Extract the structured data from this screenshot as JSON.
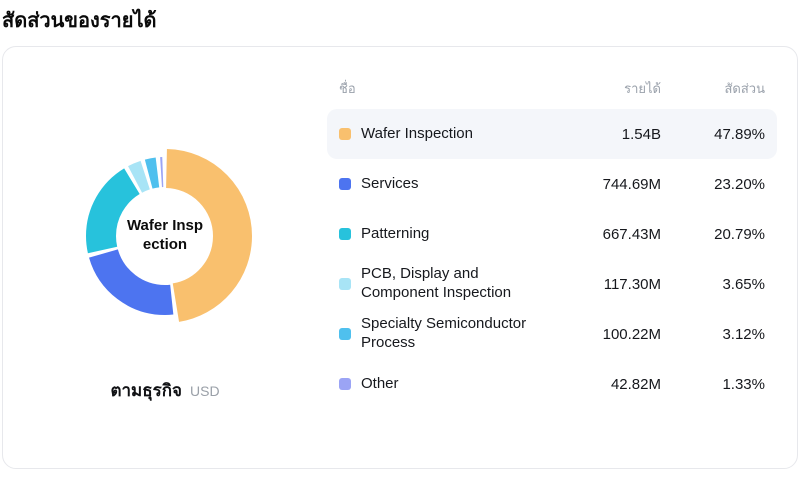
{
  "page_title": "สัดส่วนของรายได้",
  "chart": {
    "center_label_lines": [
      "Wafer Insp",
      "ection"
    ],
    "caption": "ตามธุรกิจ",
    "unit": "USD"
  },
  "table": {
    "headers": {
      "name": "ชื่อ",
      "revenue": "รายได้",
      "share": "สัดส่วน"
    },
    "rows": [
      {
        "name": "Wafer Inspection",
        "revenue": "1.54B",
        "share": "47.89%",
        "color": "#F9C06E"
      },
      {
        "name": "Services",
        "revenue": "744.69M",
        "share": "23.20%",
        "color": "#4D74F0"
      },
      {
        "name": "Patterning",
        "revenue": "667.43M",
        "share": "20.79%",
        "color": "#27C2DC"
      },
      {
        "name": "PCB, Display and Component Inspection",
        "revenue": "117.30M",
        "share": "3.65%",
        "color": "#A8E4F6"
      },
      {
        "name": "Specialty Semiconductor Process",
        "revenue": "100.22M",
        "share": "3.12%",
        "color": "#4FC0EE"
      },
      {
        "name": "Other",
        "revenue": "42.82M",
        "share": "1.33%",
        "color": "#9BA4F5"
      }
    ]
  },
  "chart_data": {
    "type": "pie",
    "donut": true,
    "title": "สัดส่วนของรายได้",
    "subtitle": "ตามธุรกิจ",
    "unit": "USD",
    "labels": [
      "Wafer Inspection",
      "Services",
      "Patterning",
      "PCB, Display and Component Inspection",
      "Specialty Semiconductor Process",
      "Other"
    ],
    "values": [
      47.89,
      23.2,
      20.79,
      3.65,
      3.12,
      1.33
    ],
    "revenues": [
      "1.54B",
      "744.69M",
      "667.43M",
      "117.30M",
      "100.22M",
      "42.82M"
    ],
    "colors": [
      "#F9C06E",
      "#4D74F0",
      "#27C2DC",
      "#A8E4F6",
      "#4FC0EE",
      "#9BA4F5"
    ],
    "hover_index": 0,
    "hovered_label": "Wafer Inspection",
    "legend_position": "right"
  }
}
